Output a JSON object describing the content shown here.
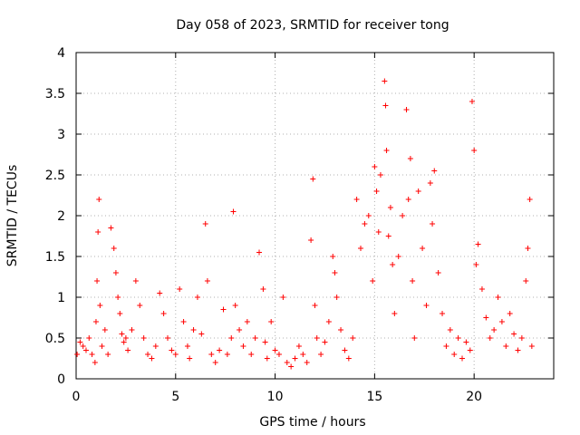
{
  "chart_data": {
    "type": "scatter",
    "title": "Day 058 of 2023, SRMTID for receiver tong",
    "xlabel": "GPS time / hours",
    "ylabel": "SRMTID / TECUs",
    "xlim": [
      0,
      24
    ],
    "ylim": [
      0,
      4
    ],
    "xticks": [
      0,
      5,
      10,
      15,
      20
    ],
    "xtick_labels": [
      "0",
      "5",
      "10",
      "15",
      "20"
    ],
    "yticks": [
      0,
      0.5,
      1,
      1.5,
      2,
      2.5,
      3,
      3.5,
      4
    ],
    "ytick_labels": [
      "0",
      "0.5",
      "1",
      "1.5",
      "2",
      "2.5",
      "3",
      "3.5",
      "4"
    ],
    "grid": true,
    "marker": "+",
    "color": "#ff0000",
    "series": [
      {
        "name": "SRMTID",
        "x": [
          0.05,
          0.2,
          0.35,
          0.5,
          0.65,
          0.8,
          0.95,
          1.0,
          1.05,
          1.1,
          1.15,
          1.2,
          1.3,
          1.45,
          1.6,
          1.75,
          1.9,
          2.0,
          2.1,
          2.2,
          2.3,
          2.4,
          2.5,
          2.6,
          2.8,
          3.0,
          3.2,
          3.4,
          3.6,
          3.8,
          4.0,
          4.2,
          4.4,
          4.6,
          4.8,
          5.0,
          5.2,
          5.4,
          5.6,
          5.7,
          5.9,
          6.1,
          6.3,
          6.5,
          6.6,
          6.8,
          7.0,
          7.2,
          7.4,
          7.6,
          7.8,
          7.9,
          8.0,
          8.2,
          8.4,
          8.6,
          8.8,
          9.0,
          9.2,
          9.4,
          9.5,
          9.6,
          9.8,
          10.0,
          10.2,
          10.4,
          10.6,
          10.8,
          11.0,
          11.2,
          11.4,
          11.6,
          11.8,
          11.9,
          12.0,
          12.1,
          12.3,
          12.5,
          12.7,
          12.9,
          13.0,
          13.1,
          13.3,
          13.5,
          13.7,
          13.9,
          14.1,
          14.3,
          14.5,
          14.7,
          14.9,
          15.0,
          15.1,
          15.2,
          15.3,
          15.5,
          15.55,
          15.6,
          15.7,
          15.8,
          15.9,
          16.0,
          16.2,
          16.4,
          16.6,
          16.7,
          16.8,
          16.9,
          17.0,
          17.2,
          17.4,
          17.6,
          17.8,
          17.9,
          18.0,
          18.2,
          18.4,
          18.6,
          18.8,
          19.0,
          19.2,
          19.4,
          19.6,
          19.8,
          19.9,
          20.0,
          20.1,
          20.2,
          20.4,
          20.6,
          20.8,
          21.0,
          21.2,
          21.4,
          21.6,
          21.8,
          22.0,
          22.2,
          22.4,
          22.6,
          22.7,
          22.8,
          22.9
        ],
        "y": [
          0.3,
          0.45,
          0.4,
          0.35,
          0.5,
          0.3,
          0.2,
          0.7,
          1.2,
          1.8,
          2.2,
          0.9,
          0.4,
          0.6,
          0.3,
          1.85,
          1.6,
          1.3,
          1.0,
          0.8,
          0.55,
          0.45,
          0.5,
          0.35,
          0.6,
          1.2,
          0.9,
          0.5,
          0.3,
          0.25,
          0.4,
          1.05,
          0.8,
          0.5,
          0.35,
          0.3,
          1.1,
          0.7,
          0.4,
          0.25,
          0.6,
          1.0,
          0.55,
          1.9,
          1.2,
          0.3,
          0.2,
          0.35,
          0.85,
          0.3,
          0.5,
          2.05,
          0.9,
          0.6,
          0.4,
          0.7,
          0.3,
          0.5,
          1.55,
          1.1,
          0.45,
          0.25,
          0.7,
          0.35,
          0.3,
          1.0,
          0.2,
          0.15,
          0.25,
          0.4,
          0.3,
          0.2,
          1.7,
          2.45,
          0.9,
          0.5,
          0.3,
          0.45,
          0.7,
          1.5,
          1.3,
          1.0,
          0.6,
          0.35,
          0.25,
          0.5,
          2.2,
          1.6,
          1.9,
          2.0,
          1.2,
          2.6,
          2.3,
          1.8,
          2.5,
          3.65,
          3.35,
          2.8,
          1.75,
          2.1,
          1.4,
          0.8,
          1.5,
          2.0,
          3.3,
          2.2,
          2.7,
          1.2,
          0.5,
          2.3,
          1.6,
          0.9,
          2.4,
          1.9,
          2.55,
          1.3,
          0.8,
          0.4,
          0.6,
          0.3,
          0.5,
          0.25,
          0.45,
          0.35,
          3.4,
          2.8,
          1.4,
          1.65,
          1.1,
          0.75,
          0.5,
          0.6,
          1.0,
          0.7,
          0.4,
          0.8,
          0.55,
          0.35,
          0.5,
          1.2,
          1.6,
          2.2,
          0.4
        ]
      }
    ]
  }
}
